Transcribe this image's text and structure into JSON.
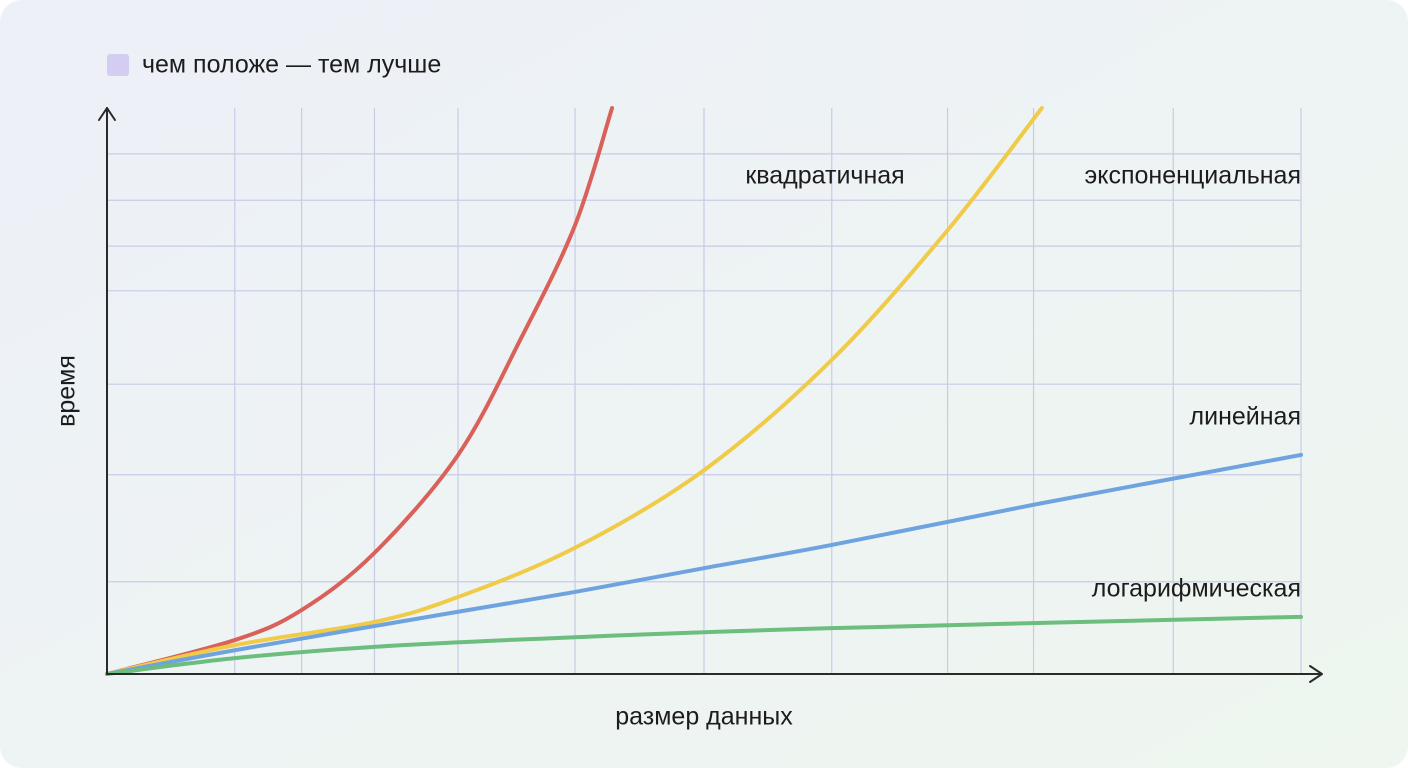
{
  "chart_data": {
    "type": "line",
    "legend_text": "чем положе — тем лучше",
    "x_label": "размер данных",
    "y_label": "время",
    "xlim": [
      0,
      100
    ],
    "ylim": [
      0,
      100
    ],
    "xticks": [
      10.7,
      16.3,
      22.4,
      29.4,
      39.2,
      50.0,
      60.7,
      70.4,
      77.6,
      89.3,
      100
    ],
    "yticks": [
      16.3,
      35.2,
      51.2,
      67.7,
      75.6,
      83.7,
      91.9
    ],
    "grid": true,
    "series": [
      {
        "name": "квадратичная",
        "color": "#d9615a",
        "x": [
          0,
          10.7,
          16.3,
          22.4,
          29.4,
          34.6,
          39.2,
          42.3
        ],
        "values": [
          0,
          6.0,
          11.3,
          21.4,
          38.7,
          59.0,
          79.3,
          100
        ]
      },
      {
        "name": "экспоненциальная",
        "color": "#f0cb48",
        "x": [
          0,
          10.7,
          22.4,
          29.4,
          39.2,
          50.0,
          60.7,
          70.4,
          78.3
        ],
        "values": [
          0,
          5.1,
          9.2,
          13.6,
          22.3,
          36.0,
          55.5,
          78.4,
          100
        ]
      },
      {
        "name": "линейная",
        "color": "#6fa3e0",
        "x": [
          0,
          10.7,
          29.4,
          39.2,
          50.0,
          60.7,
          77.6,
          100
        ],
        "values": [
          0,
          4.2,
          11.0,
          14.5,
          18.7,
          22.8,
          29.9,
          38.7
        ]
      },
      {
        "name": "логарифмическая",
        "color": "#6cbd7e",
        "x": [
          0,
          10.7,
          22.4,
          39.2,
          60.7,
          100
        ],
        "values": [
          0,
          2.8,
          4.8,
          6.5,
          8.1,
          10.1
        ]
      }
    ]
  }
}
